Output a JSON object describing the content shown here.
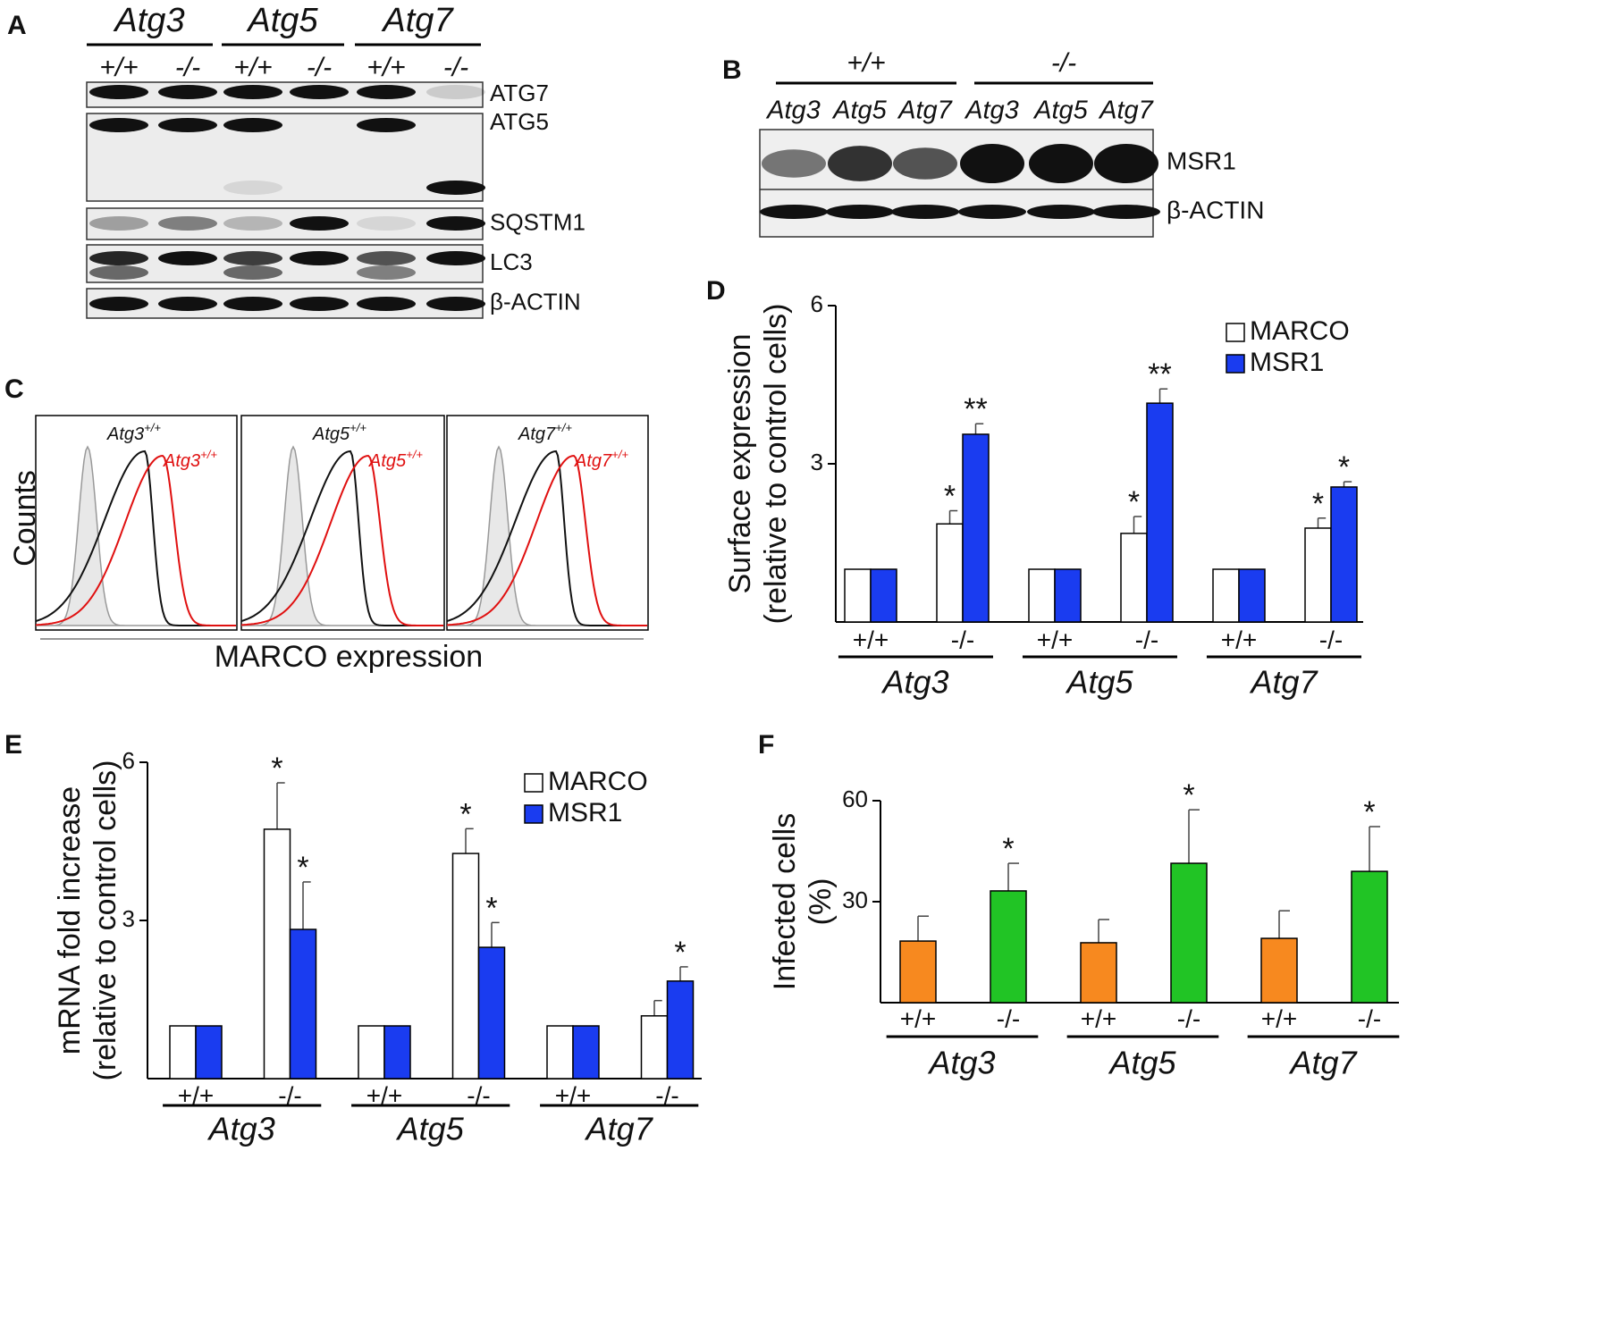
{
  "panel_labels": [
    "A",
    "B",
    "C",
    "D",
    "E",
    "F"
  ],
  "blot_a": {
    "genes": [
      "Atg3",
      "Atg5",
      "Atg7"
    ],
    "genotypes": [
      "+/+",
      "-/-",
      "+/+",
      "-/-",
      "+/+",
      "-/-"
    ],
    "proteins": [
      "ATG7",
      "ATG5",
      "SQSTM1",
      "LC3",
      "β-ACTIN"
    ]
  },
  "blot_b": {
    "groups": [
      "+/+",
      "-/-"
    ],
    "lanes": [
      "Atg3",
      "Atg5",
      "Atg7",
      "Atg3",
      "Atg5",
      "Atg7"
    ],
    "proteins": [
      "MSR1",
      "β-ACTIN"
    ]
  },
  "flow_c": {
    "y_label": "Counts",
    "x_label": "MARCO expression",
    "plots": [
      {
        "black": "Atg3",
        "black_sup": "+/+",
        "red": "Atg3",
        "red_sup": "+/+"
      },
      {
        "black": "Atg5",
        "black_sup": "+/+",
        "red": "Atg5",
        "red_sup": "+/+"
      },
      {
        "black": "Atg7",
        "black_sup": "+/+",
        "red": "Atg7",
        "red_sup": "+/+"
      }
    ]
  },
  "chart_data": [
    {
      "type": "bar",
      "y_label": [
        "Surface expression",
        "(relative to control cells)"
      ],
      "categories": [
        "+/+",
        "-/-",
        "+/+",
        "-/-",
        "+/+",
        "-/-"
      ],
      "groups": [
        "Atg3",
        "Atg5",
        "Atg7"
      ],
      "ylim": [
        0,
        6
      ],
      "yticks": [
        3,
        6
      ],
      "legend": "upper right",
      "series": [
        {
          "name": "MARCO",
          "color": "#ffffff",
          "values": [
            1,
            1.86,
            1,
            1.68,
            1,
            1.78
          ],
          "errors": [
            null,
            0.25,
            null,
            0.32,
            null,
            0.19
          ],
          "significance": [
            null,
            "*",
            null,
            "*",
            null,
            "*"
          ]
        },
        {
          "name": "MSR1",
          "color": "#1a3cf0",
          "values": [
            1,
            3.56,
            1,
            4.15,
            1,
            2.56
          ],
          "errors": [
            null,
            0.2,
            null,
            0.27,
            null,
            0.1
          ],
          "significance": [
            null,
            "**",
            null,
            "**",
            null,
            "*"
          ]
        }
      ]
    },
    {
      "type": "bar",
      "y_label": [
        "mRNA fold increase",
        "(relative to control cells)"
      ],
      "categories": [
        "+/+",
        "-/-",
        "+/+",
        "-/-",
        "+/+",
        "-/-"
      ],
      "groups": [
        "Atg3",
        "Atg5",
        "Atg7"
      ],
      "ylim": [
        0,
        6
      ],
      "yticks": [
        3,
        6
      ],
      "legend": "upper right",
      "series": [
        {
          "name": "MARCO",
          "color": "#ffffff",
          "values": [
            1,
            4.73,
            1,
            4.27,
            1,
            1.19
          ],
          "errors": [
            null,
            0.88,
            null,
            0.47,
            null,
            0.29
          ],
          "significance": [
            null,
            "*",
            null,
            "*",
            null,
            null
          ]
        },
        {
          "name": "MSR1",
          "color": "#1a3cf0",
          "values": [
            1,
            2.83,
            1,
            2.49,
            1,
            1.85
          ],
          "errors": [
            null,
            0.9,
            null,
            0.47,
            null,
            0.27
          ],
          "significance": [
            null,
            "*",
            null,
            "*",
            null,
            "*"
          ]
        }
      ]
    },
    {
      "type": "bar",
      "y_label": [
        "Infected cells",
        "(%)"
      ],
      "categories": [
        "+/+",
        "-/-",
        "+/+",
        "-/-",
        "+/+",
        "-/-"
      ],
      "groups": [
        "Atg3",
        "Atg5",
        "Atg7"
      ],
      "ylim": [
        0,
        60
      ],
      "yticks": [
        30,
        60
      ],
      "series": [
        {
          "colors": [
            "#f7891f",
            "#21c425",
            "#f7891f",
            "#21c425",
            "#f7891f",
            "#21c425"
          ],
          "values": [
            18.3,
            33.2,
            17.8,
            41.4,
            19.1,
            39
          ],
          "errors": [
            7.4,
            8.2,
            6.9,
            15.9,
            8.2,
            13.3
          ],
          "significance": [
            null,
            "*",
            null,
            "*",
            null,
            "*"
          ]
        }
      ]
    }
  ]
}
